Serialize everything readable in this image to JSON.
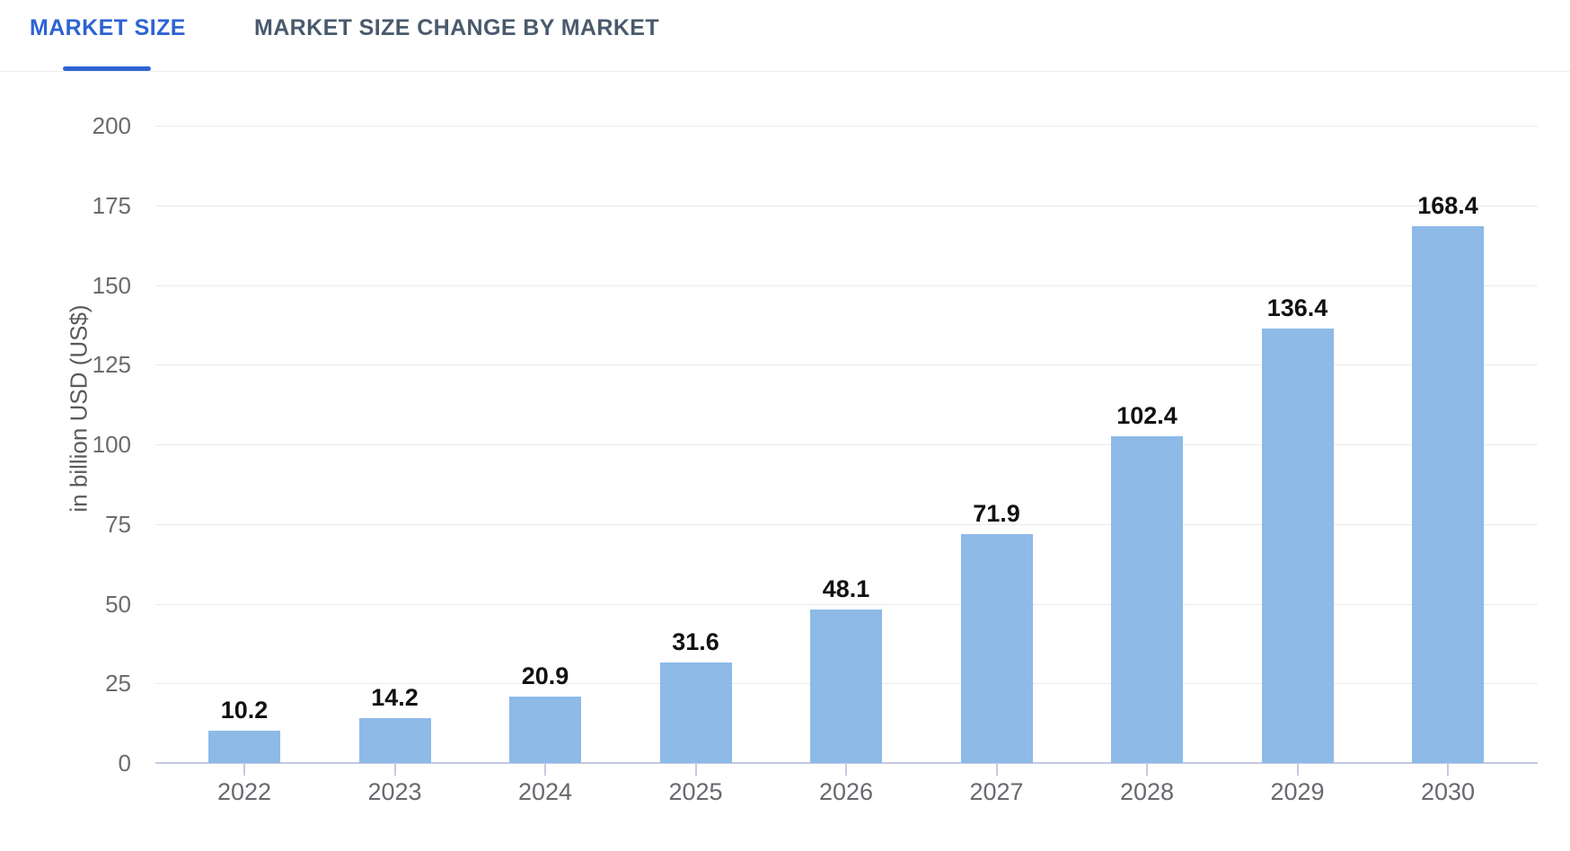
{
  "tabs": [
    {
      "label": "MARKET SIZE",
      "active": true
    },
    {
      "label": "MARKET SIZE CHANGE BY MARKET",
      "active": false
    }
  ],
  "colors": {
    "bar": "#8dbae7",
    "active_tab": "#2e63d3",
    "inactive_tab": "#4a5a6d",
    "gridline": "#eaeaea",
    "axis_line": "#c4cadf",
    "tick_label": "#6b6b6b",
    "value_label": "#111111"
  },
  "chart_data": {
    "type": "bar",
    "title": "",
    "categories": [
      "2022",
      "2023",
      "2024",
      "2025",
      "2026",
      "2027",
      "2028",
      "2029",
      "2030"
    ],
    "values": [
      10.2,
      14.2,
      20.9,
      31.6,
      48.1,
      71.9,
      102.4,
      136.4,
      168.4
    ],
    "xlabel": "",
    "ylabel": "in billion USD (US$)",
    "ylim": [
      0,
      200
    ],
    "ytick_step": 25,
    "grid": true,
    "legend_position": "none",
    "value_labels": true
  }
}
